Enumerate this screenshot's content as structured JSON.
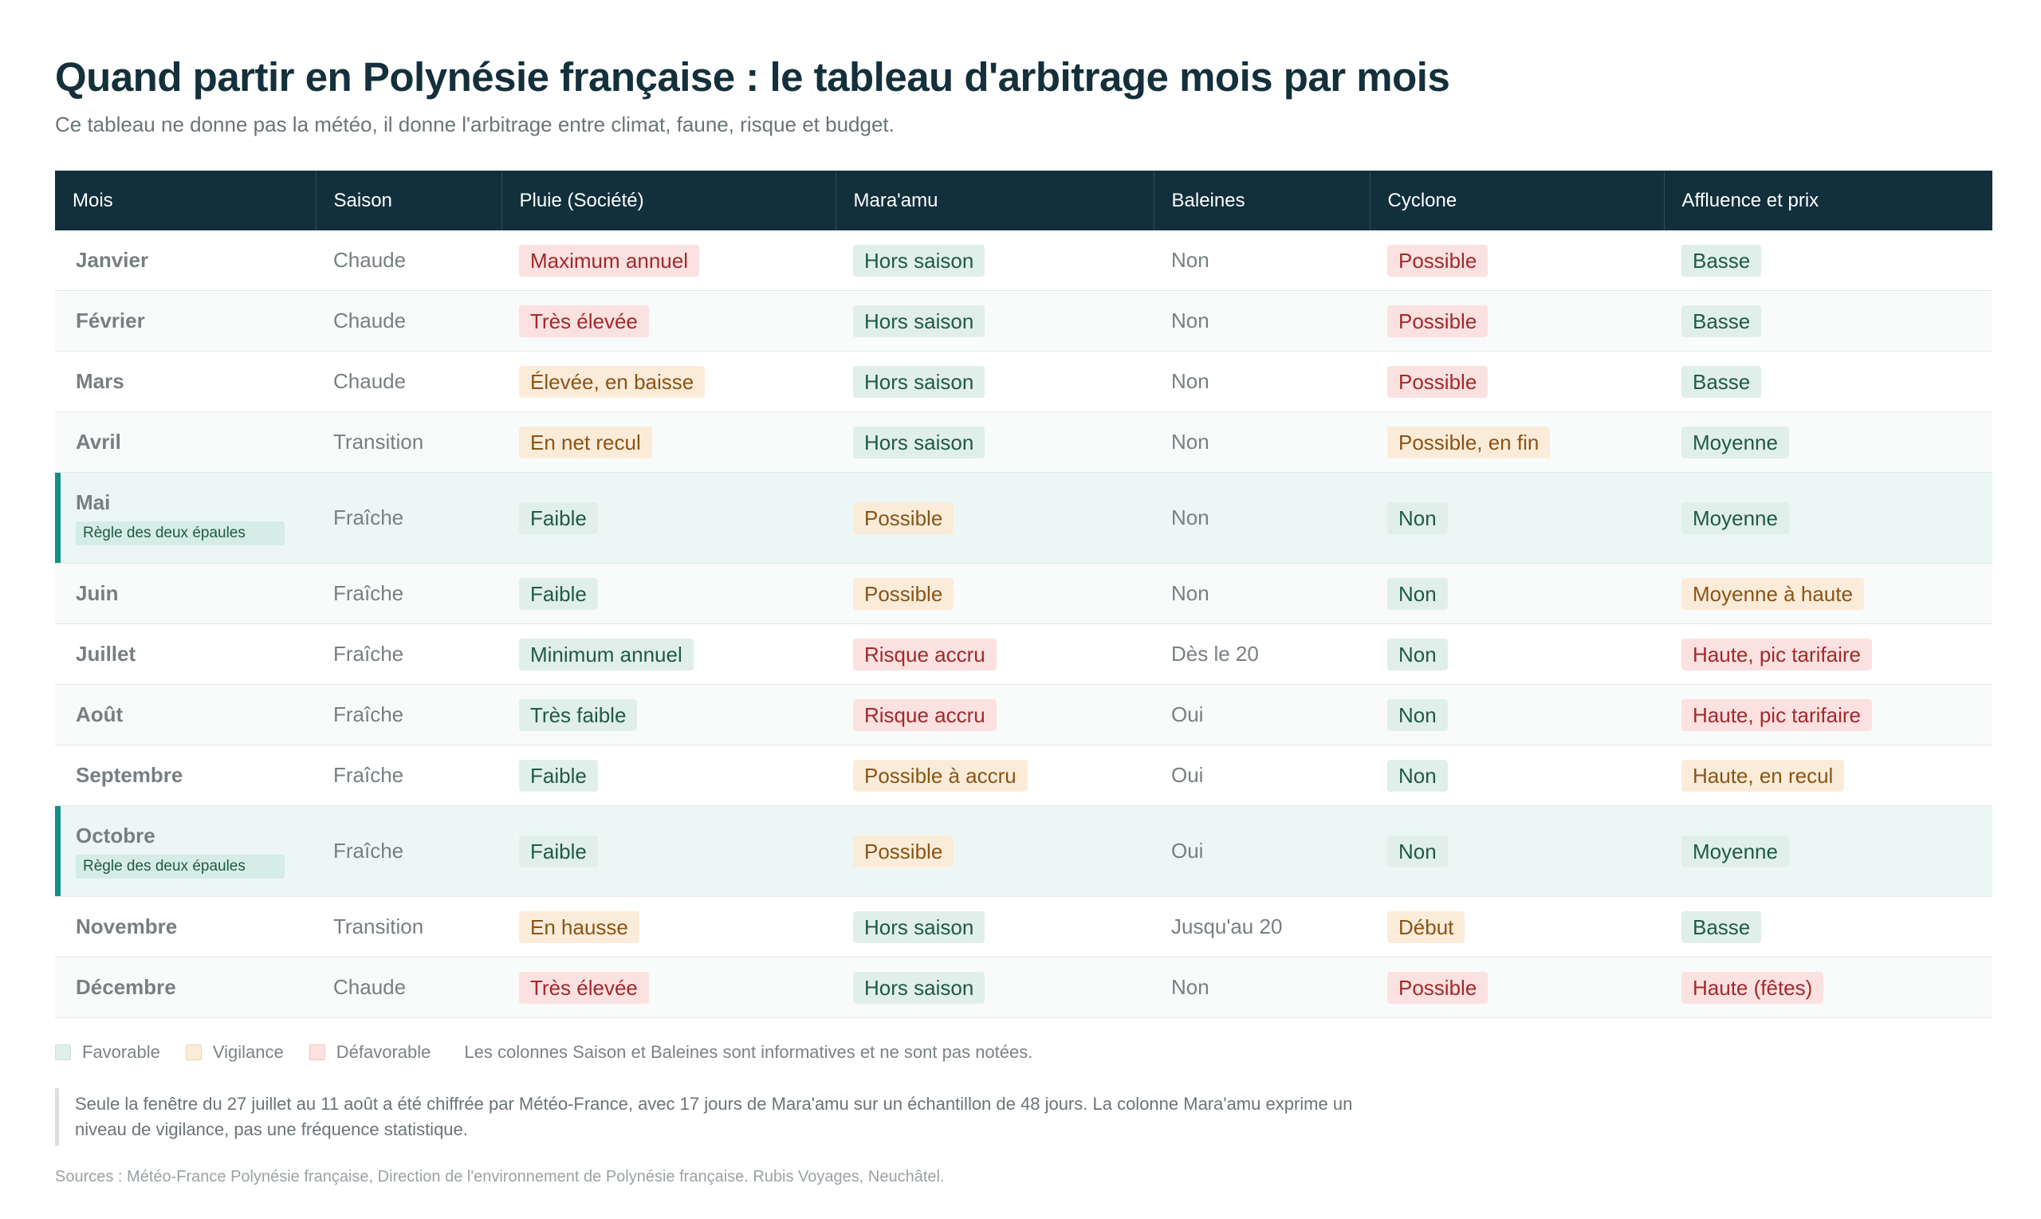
{
  "title": "Quand partir en Polynésie française : le tableau d'arbitrage mois par mois",
  "subtitle": "Ce tableau ne donne pas la météo, il donne l'arbitrage entre climat, faune, risque et budget.",
  "columns": [
    "Mois",
    "Saison",
    "Pluie (Société)",
    "Mara'amu",
    "Baleines",
    "Cyclone",
    "Affluence et prix"
  ],
  "rows": [
    {
      "mois": "Janvier",
      "tag": "",
      "saison": "Chaude",
      "pluie": {
        "text": "Maximum annuel",
        "level": "def"
      },
      "maraamu": {
        "text": "Hors saison",
        "level": "fav"
      },
      "baleines": "Non",
      "cyclone": {
        "text": "Possible",
        "level": "def"
      },
      "affluence": {
        "text": "Basse",
        "level": "fav"
      }
    },
    {
      "mois": "Février",
      "tag": "",
      "saison": "Chaude",
      "pluie": {
        "text": "Très élevée",
        "level": "def"
      },
      "maraamu": {
        "text": "Hors saison",
        "level": "fav"
      },
      "baleines": "Non",
      "cyclone": {
        "text": "Possible",
        "level": "def"
      },
      "affluence": {
        "text": "Basse",
        "level": "fav"
      }
    },
    {
      "mois": "Mars",
      "tag": "",
      "saison": "Chaude",
      "pluie": {
        "text": "Élevée, en baisse",
        "level": "vig"
      },
      "maraamu": {
        "text": "Hors saison",
        "level": "fav"
      },
      "baleines": "Non",
      "cyclone": {
        "text": "Possible",
        "level": "def"
      },
      "affluence": {
        "text": "Basse",
        "level": "fav"
      }
    },
    {
      "mois": "Avril",
      "tag": "",
      "saison": "Transition",
      "pluie": {
        "text": "En net recul",
        "level": "vig"
      },
      "maraamu": {
        "text": "Hors saison",
        "level": "fav"
      },
      "baleines": "Non",
      "cyclone": {
        "text": "Possible, en fin",
        "level": "vig"
      },
      "affluence": {
        "text": "Moyenne",
        "level": "fav"
      }
    },
    {
      "mois": "Mai",
      "tag": "Règle des deux épaules",
      "saison": "Fraîche",
      "pluie": {
        "text": "Faible",
        "level": "fav"
      },
      "maraamu": {
        "text": "Possible",
        "level": "vig"
      },
      "baleines": "Non",
      "cyclone": {
        "text": "Non",
        "level": "fav"
      },
      "affluence": {
        "text": "Moyenne",
        "level": "fav"
      }
    },
    {
      "mois": "Juin",
      "tag": "",
      "saison": "Fraîche",
      "pluie": {
        "text": "Faible",
        "level": "fav"
      },
      "maraamu": {
        "text": "Possible",
        "level": "vig"
      },
      "baleines": "Non",
      "cyclone": {
        "text": "Non",
        "level": "fav"
      },
      "affluence": {
        "text": "Moyenne à haute",
        "level": "vig"
      }
    },
    {
      "mois": "Juillet",
      "tag": "",
      "saison": "Fraîche",
      "pluie": {
        "text": "Minimum annuel",
        "level": "fav"
      },
      "maraamu": {
        "text": "Risque accru",
        "level": "def"
      },
      "baleines": "Dès le 20",
      "cyclone": {
        "text": "Non",
        "level": "fav"
      },
      "affluence": {
        "text": "Haute, pic tarifaire",
        "level": "def"
      }
    },
    {
      "mois": "Août",
      "tag": "",
      "saison": "Fraîche",
      "pluie": {
        "text": "Très faible",
        "level": "fav"
      },
      "maraamu": {
        "text": "Risque accru",
        "level": "def"
      },
      "baleines": "Oui",
      "cyclone": {
        "text": "Non",
        "level": "fav"
      },
      "affluence": {
        "text": "Haute, pic tarifaire",
        "level": "def"
      }
    },
    {
      "mois": "Septembre",
      "tag": "",
      "saison": "Fraîche",
      "pluie": {
        "text": "Faible",
        "level": "fav"
      },
      "maraamu": {
        "text": "Possible à accru",
        "level": "vig"
      },
      "baleines": "Oui",
      "cyclone": {
        "text": "Non",
        "level": "fav"
      },
      "affluence": {
        "text": "Haute, en recul",
        "level": "vig"
      }
    },
    {
      "mois": "Octobre",
      "tag": "Règle des deux épaules",
      "saison": "Fraîche",
      "pluie": {
        "text": "Faible",
        "level": "fav"
      },
      "maraamu": {
        "text": "Possible",
        "level": "vig"
      },
      "baleines": "Oui",
      "cyclone": {
        "text": "Non",
        "level": "fav"
      },
      "affluence": {
        "text": "Moyenne",
        "level": "fav"
      }
    },
    {
      "mois": "Novembre",
      "tag": "",
      "saison": "Transition",
      "pluie": {
        "text": "En hausse",
        "level": "vig"
      },
      "maraamu": {
        "text": "Hors saison",
        "level": "fav"
      },
      "baleines": "Jusqu'au 20",
      "cyclone": {
        "text": "Début",
        "level": "vig"
      },
      "affluence": {
        "text": "Basse",
        "level": "fav"
      }
    },
    {
      "mois": "Décembre",
      "tag": "",
      "saison": "Chaude",
      "pluie": {
        "text": "Très élevée",
        "level": "def"
      },
      "maraamu": {
        "text": "Hors saison",
        "level": "fav"
      },
      "baleines": "Non",
      "cyclone": {
        "text": "Possible",
        "level": "def"
      },
      "affluence": {
        "text": "Haute (fêtes)",
        "level": "def"
      }
    }
  ],
  "legend": {
    "favorable": "Favorable",
    "vigilance": "Vigilance",
    "defavorable": "Défavorable",
    "note": "Les colonnes Saison et Baleines sont informatives et ne sont pas notées."
  },
  "note": "Seule la fenêtre du 27 juillet au 11 août a été chiffrée par Météo-France, avec 17 jours de Mara'amu sur un échantillon de 48 jours. La colonne Mara'amu exprime un niveau de vigilance, pas une fréquence statistique.",
  "sources": "Sources : Météo-France Polynésie française, Direction de l'environnement de Polynésie française. Rubis Voyages, Neuchâtel.",
  "colors": {
    "header_bg": "#12303c",
    "favorable": "#e1efea",
    "vigilance": "#fbecd9",
    "defavorable": "#fbe2e0",
    "accent": "#12908a"
  }
}
